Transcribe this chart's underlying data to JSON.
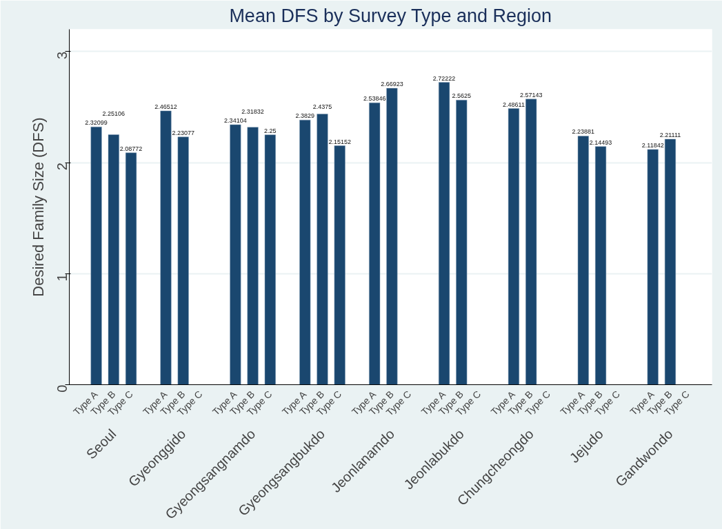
{
  "chart_data": {
    "type": "bar",
    "title": "Mean DFS by Survey Type and Region",
    "ylabel": "Desired Family Size (DFS)",
    "categories": [
      "Type A",
      "Type B",
      "Type C",
      "Type A",
      "Type B",
      "Type C",
      "Type A",
      "Type B",
      "Type C",
      "Type A",
      "Type B",
      "Type C",
      "Type A",
      "Type B",
      "Type C",
      "Type A",
      "Type B",
      "Type C",
      "Type A",
      "Type B",
      "Type C",
      "Type A",
      "Type B",
      "Type C",
      "Type A",
      "Type B",
      "Type C"
    ],
    "values": [
      2.32099,
      2.25106,
      2.08772,
      2.46512,
      2.23077,
      null,
      2.34104,
      2.31832,
      2.25,
      2.3829,
      2.4375,
      2.15152,
      2.53846,
      2.66923,
      null,
      2.72222,
      2.5625,
      null,
      2.48611,
      2.57143,
      null,
      2.23881,
      2.14493,
      null,
      2.11842,
      2.21111,
      null
    ],
    "color": "#1a476f",
    "annotations": [
      "Seoul",
      "Gyeonggido",
      "Gyeongsangnamdo",
      "Gyeongsangbukdo",
      "Jeonlanamdo",
      "Jeonlabukdo",
      "Chungcheongdo",
      "Jejudo",
      "Gandwondo"
    ],
    "ylim": [
      0,
      3.2
    ],
    "yticks": [
      0,
      1,
      2,
      3
    ],
    "grid": "y",
    "data_labels": true
  }
}
